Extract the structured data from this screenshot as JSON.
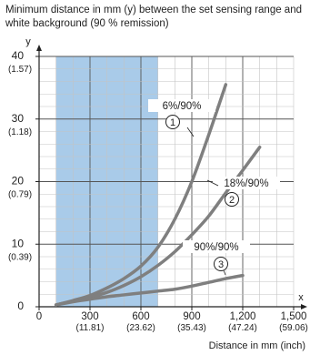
{
  "chart_data": {
    "type": "line",
    "title": "Minimum distance in mm (y) between the set sensing range and white background (90 % remission)",
    "ylabel": "y",
    "xlabel": "x",
    "xlabel_full": "Distance in mm (inch)",
    "xlim": [
      0,
      1500
    ],
    "ylim": [
      0,
      40
    ],
    "grid": true,
    "x_ticks": [
      {
        "value": 0,
        "label": "0",
        "sublabel": ""
      },
      {
        "value": 300,
        "label": "300",
        "sublabel": "(11.81)"
      },
      {
        "value": 600,
        "label": "600",
        "sublabel": "(23.62)"
      },
      {
        "value": 900,
        "label": "900",
        "sublabel": "(35.43)"
      },
      {
        "value": 1200,
        "label": "1,200",
        "sublabel": "(47.24)"
      },
      {
        "value": 1500,
        "label": "1,500",
        "sublabel": "(59.06)"
      }
    ],
    "y_ticks": [
      {
        "value": 0,
        "label": "0",
        "sublabel": ""
      },
      {
        "value": 10,
        "label": "10",
        "sublabel": "(0.39)"
      },
      {
        "value": 20,
        "label": "20",
        "sublabel": "(0.79)"
      },
      {
        "value": 30,
        "label": "30",
        "sublabel": "(1.18)"
      },
      {
        "value": 40,
        "label": "40",
        "sublabel": "(1.57)"
      }
    ],
    "highlight_band": {
      "x_start": 100,
      "x_end": 700,
      "color": "#a9cbe9"
    },
    "series": [
      {
        "name": "6%/90%",
        "marker": "1",
        "color": "#7f7f7f",
        "x": [
          100,
          200,
          300,
          400,
          500,
          600,
          700,
          800,
          900,
          1000,
          1100
        ],
        "y": [
          0.3,
          1.0,
          1.8,
          3.0,
          4.5,
          6.5,
          9.5,
          14.0,
          20.0,
          27.5,
          35.5
        ]
      },
      {
        "name": "18%/90%",
        "marker": "2",
        "color": "#7f7f7f",
        "x": [
          100,
          200,
          300,
          400,
          500,
          600,
          700,
          800,
          900,
          1000,
          1100,
          1200,
          1300
        ],
        "y": [
          0.3,
          0.9,
          1.5,
          2.3,
          3.4,
          4.8,
          6.6,
          8.8,
          11.5,
          14.5,
          18.2,
          21.8,
          25.5
        ]
      },
      {
        "name": "90%/90%",
        "marker": "3",
        "color": "#7f7f7f",
        "x": [
          100,
          200,
          300,
          400,
          500,
          600,
          700,
          800,
          900,
          1000,
          1100,
          1200
        ],
        "y": [
          0.3,
          0.8,
          1.2,
          1.6,
          1.9,
          2.2,
          2.5,
          2.8,
          3.3,
          3.9,
          4.5,
          5.0
        ]
      }
    ]
  }
}
